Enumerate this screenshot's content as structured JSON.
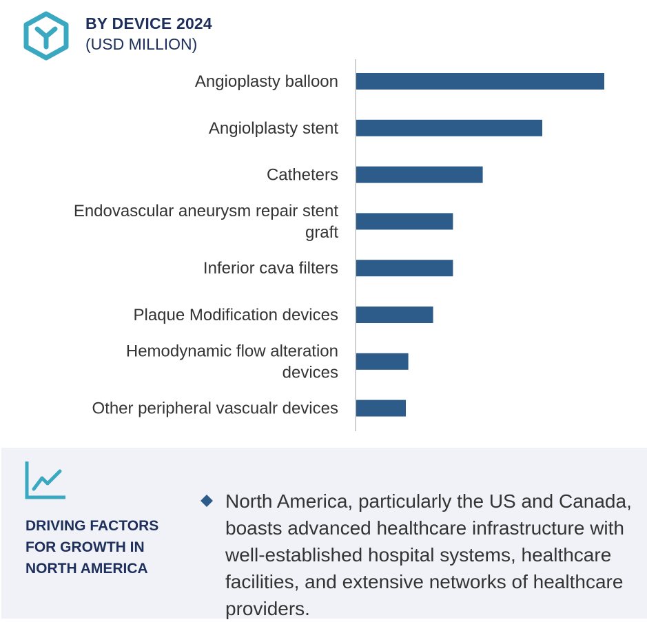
{
  "header": {
    "title": "BY DEVICE 2024",
    "subtitle": "(USD MILLION)"
  },
  "chart_data": {
    "type": "bar",
    "orientation": "horizontal",
    "title": "BY DEVICE 2024",
    "subtitle": "(USD MILLION)",
    "categories": [
      [
        "Angioplasty balloon"
      ],
      [
        "Angiolplasty stent"
      ],
      [
        "Catheters"
      ],
      [
        "Endovascular aneurysm repair stent",
        "graft"
      ],
      [
        "Inferior cava filters"
      ],
      [
        "Plaque Modification devices"
      ],
      [
        "Hemodynamic flow alteration",
        "devices"
      ],
      [
        "Other peripheral vascualr devices"
      ]
    ],
    "values": [
      100,
      75,
      51,
      39,
      39,
      31,
      21,
      20
    ],
    "value_note": "relative magnitudes, no axis scale shown",
    "bar_color": "#2e5c8a",
    "axis_color": "#d0d0d0",
    "grid": false,
    "legend": "none"
  },
  "driving_factors": {
    "heading_lines": [
      "DRIVING FACTORS",
      "FOR GROWTH IN",
      "NORTH AMERICA"
    ],
    "bullet_text": "North America, particularly the US and Canada, boasts advanced healthcare infrastructure with well-established hospital systems, healthcare facilities, and extensive networks of healthcare providers.",
    "bullet_color": "#2e5c8a"
  },
  "colors": {
    "accent": "#3aa8c1",
    "heading": "#1d2f5a",
    "panel_bg": "#f1f2f7"
  }
}
